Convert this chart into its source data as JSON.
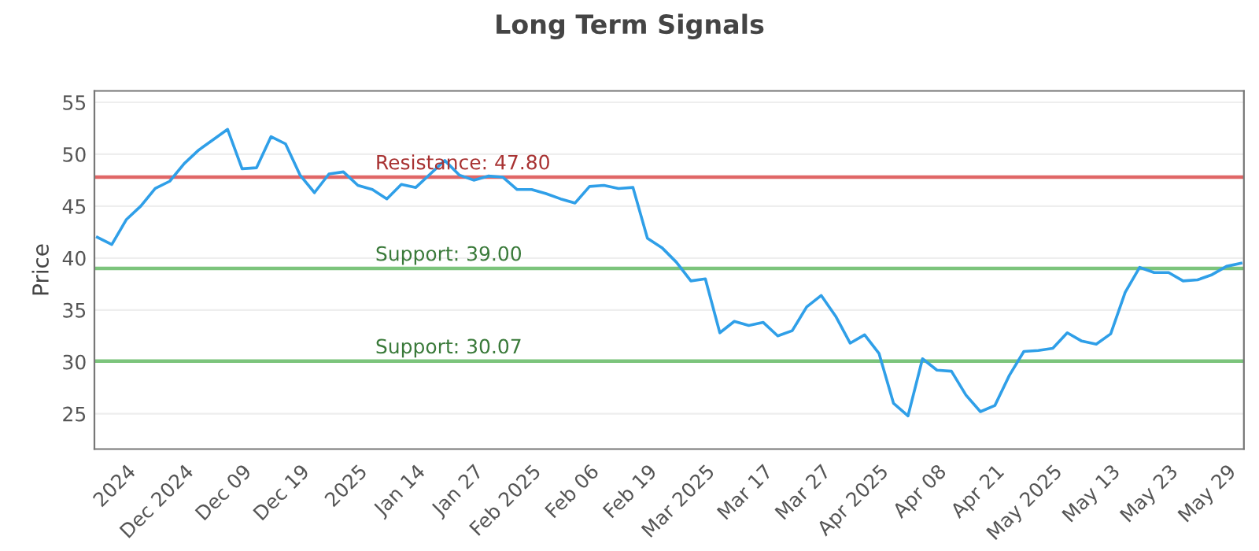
{
  "chart_data": {
    "type": "line",
    "title": "Long Term Signals",
    "ylabel": "Price",
    "categories": [
      null,
      null,
      "2024",
      null,
      null,
      null,
      "Dec 2024",
      null,
      null,
      null,
      "Dec 09",
      null,
      null,
      null,
      "Dec 19",
      null,
      null,
      null,
      "2025",
      null,
      null,
      null,
      "Jan 14",
      null,
      null,
      null,
      "Jan 27",
      null,
      null,
      null,
      "Feb 2025",
      null,
      null,
      null,
      "Feb 06",
      null,
      null,
      null,
      "Feb 19",
      null,
      null,
      null,
      "Mar 2025",
      null,
      null,
      null,
      "Mar 17",
      null,
      null,
      null,
      "Mar 27",
      null,
      null,
      null,
      "Apr 2025",
      null,
      null,
      null,
      "Apr 08",
      null,
      null,
      null,
      "Apr 21",
      null,
      null,
      null,
      "May 2025",
      null,
      null,
      null,
      "May 13",
      null,
      null,
      null,
      "May 23",
      null,
      null,
      null,
      "May 29",
      null
    ],
    "series": [
      {
        "color": "#2f9fe8",
        "values": [
          42.0,
          41.3,
          43.7,
          45.0,
          46.7,
          47.4,
          49.1,
          50.4,
          51.4,
          52.4,
          48.6,
          48.7,
          51.7,
          51.0,
          48.0,
          46.3,
          48.1,
          48.3,
          47.0,
          46.6,
          45.7,
          47.1,
          46.8,
          48.1,
          49.4,
          48.0,
          47.5,
          47.9,
          47.8,
          46.6,
          46.6,
          46.2,
          45.7,
          45.3,
          46.9,
          47.0,
          46.7,
          46.8,
          41.9,
          41.0,
          39.6,
          37.8,
          38.0,
          32.8,
          33.9,
          33.5,
          33.8,
          32.5,
          33.0,
          35.3,
          36.4,
          34.4,
          31.8,
          32.6,
          30.8,
          26.0,
          24.8,
          30.3,
          29.2,
          29.1,
          26.8,
          25.2,
          25.8,
          28.7,
          31.0,
          31.1,
          31.3,
          32.8,
          32.0,
          31.7,
          32.7,
          36.7,
          39.1,
          38.6,
          38.6,
          37.8,
          37.9,
          38.4,
          39.2,
          39.5
        ]
      }
    ],
    "ylim": [
      21.6,
      56.1
    ],
    "yticks": [
      25,
      30,
      35,
      40,
      45,
      50,
      55
    ],
    "grid": "y",
    "marker": "none",
    "line_style": "solid",
    "ref_lines": [
      {
        "axis": "y",
        "value": 47.8,
        "label": "Resistance: 47.80",
        "color": "#e06666"
      },
      {
        "axis": "y",
        "value": 39.0,
        "label": "Support: 39.00",
        "color": "#7cc47c"
      },
      {
        "axis": "y",
        "value": 30.07,
        "label": "Support: 30.07",
        "color": "#7cc47c"
      }
    ]
  }
}
